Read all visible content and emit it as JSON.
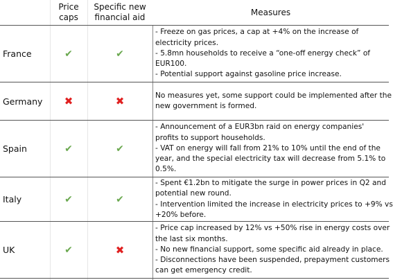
{
  "header": {
    "price_caps_line1": "Price",
    "price_caps_line2": "caps",
    "aid_line1": "Specific new",
    "aid_line2": "financial aid",
    "measures": "Measures"
  },
  "marks": {
    "yes": "✔",
    "no": "✖",
    "yes_color": "#6aa84f",
    "no_color": "#e02020"
  },
  "rows": [
    {
      "country": "France",
      "price_caps": "yes",
      "financial_aid": "yes",
      "measures": [
        "- Freeze on gas prices, a cap at +4% on the increase of",
        "electricity prices.",
        "- 5.8mn households to receive a “one-off energy check”  of",
        "EUR100.",
        "- Potential support against gasoline price increase."
      ]
    },
    {
      "country": "Germany",
      "price_caps": "no",
      "financial_aid": "no",
      "measures": [
        "No measures yet, some support could be implemented after the",
        "new government is formed."
      ]
    },
    {
      "country": "Spain",
      "price_caps": "yes",
      "financial_aid": "yes",
      "measures": [
        "- Announcement of a EUR3bn raid on energy companies'",
        "profits to support households.",
        "- VAT on energy will fall from 21% to 10% until the end of the",
        "year, and the special electricity tax will decrease from 5.1% to",
        "0.5%."
      ]
    },
    {
      "country": "Italy",
      "price_caps": "yes",
      "financial_aid": "yes",
      "measures": [
        "- Spent €1.2bn to mitigate the surge in power prices in Q2 and",
        "potential new round.",
        "- Intervention limited the increase in electricity prices to +9% vs",
        "+20% before."
      ]
    },
    {
      "country": "UK",
      "price_caps": "yes",
      "financial_aid": "no",
      "measures": [
        "- Price cap increased by 12% vs +50% rise in energy costs over",
        "the last six months.",
        "- No new financial support, some specific aid already in place.",
        "- Disconnections have been suspended, prepayment customers",
        "can get emergency credit."
      ]
    }
  ]
}
